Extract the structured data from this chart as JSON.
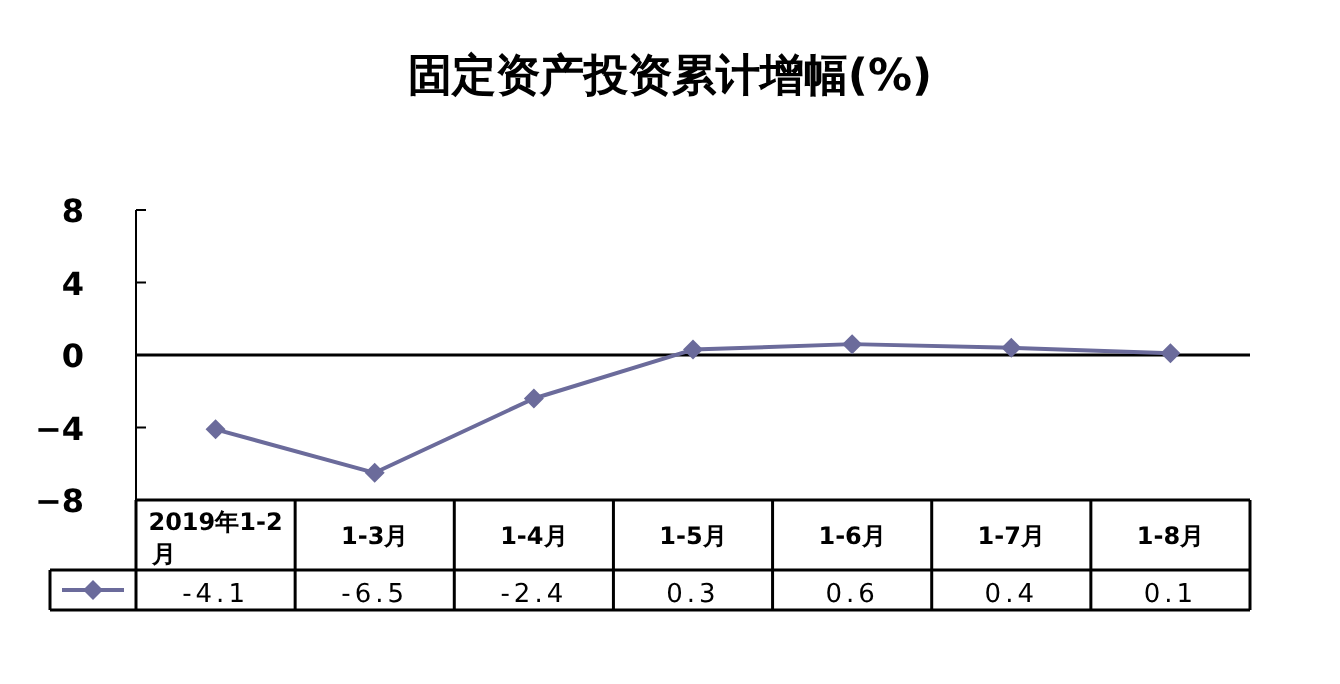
{
  "chart_data": {
    "type": "line",
    "title": "固定资产投资累计增幅(%)",
    "categories": [
      "2019年1-2月",
      "1-3月",
      "1-4月",
      "1-5月",
      "1-6月",
      "1-7月",
      "1-8月"
    ],
    "series": [
      {
        "color": "#6b6b9b",
        "values": [
          -4.1,
          -6.5,
          -2.4,
          0.3,
          0.6,
          0.4,
          0.1
        ]
      }
    ],
    "ylim": [
      -8,
      8
    ],
    "yticks": [
      -8,
      -4,
      0,
      4,
      8
    ],
    "marker": "diamond",
    "line_style": "solid",
    "data_labels": true
  }
}
